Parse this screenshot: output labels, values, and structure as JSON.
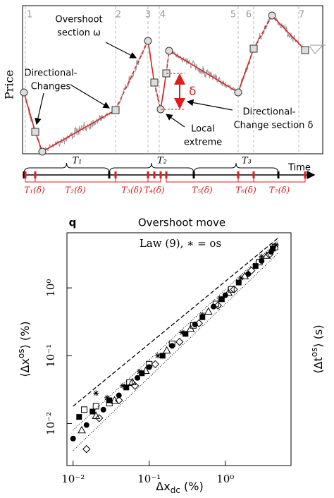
{
  "diagram": {
    "y_label": "Price",
    "x_label": "Time",
    "section_numbers": [
      "1",
      "2",
      "3",
      "4",
      "5",
      "6",
      "7"
    ],
    "overshoot_label": [
      "Overshoot",
      "section ω"
    ],
    "dc_label": [
      "Directional-",
      "Changes"
    ],
    "local_extreme_label": [
      "Local",
      "extreme"
    ],
    "dc_section_label": [
      "Directional-",
      "Change section δ"
    ],
    "delta_symbol": "δ",
    "total_periods": [
      "T₁",
      "T₂",
      "T₃"
    ],
    "dc_periods": [
      "T₁(δ)",
      "T₂(δ)",
      "T₃(δ)",
      "T₄(δ)",
      "T₅(δ)",
      "T₆(δ)",
      "T₇(δ)"
    ]
  },
  "chart_data": {
    "type": "scatter",
    "panel_label": "q",
    "title": "Overshoot move",
    "annotation": "Law (9), ∗ = os",
    "x_label": {
      "base": "Δx",
      "sub": "dc",
      "unit": " (%)"
    },
    "y_label": {
      "open": "⟨Δx",
      "sup": "os",
      "close": "⟩ (%)"
    },
    "y2_label": {
      "open": "⟨Δt",
      "sup": "os",
      "close": "⟩ (s)"
    },
    "log_x": true,
    "log_y": true,
    "xlim": [
      0.0083,
      7.3
    ],
    "ylim": [
      0.0024,
      6.5
    ],
    "xticks": [
      {
        "value": 0.01,
        "label": "10⁻²"
      },
      {
        "value": 0.1,
        "label": "10⁻¹"
      },
      {
        "value": 1,
        "label": "10⁰"
      }
    ],
    "yticks": [
      {
        "value": 0.01,
        "label": "10⁻²"
      },
      {
        "value": 0.1,
        "label": "10⁻¹"
      },
      {
        "value": 1,
        "label": "10⁰"
      }
    ],
    "series": [
      {
        "marker": "filled-circle",
        "color": "#000000",
        "x": [
          0.01,
          0.015,
          0.025,
          0.04,
          0.07,
          0.1,
          0.2,
          0.4,
          0.7,
          1,
          2,
          3,
          4
        ],
        "values": [
          0.006,
          0.0095,
          0.016,
          0.026,
          0.047,
          0.068,
          0.14,
          0.29,
          0.53,
          0.78,
          1.6,
          2.5,
          3.4
        ]
      },
      {
        "marker": "filled-square",
        "color": "#000000",
        "x": [
          0.012,
          0.018,
          0.03,
          0.05,
          0.08,
          0.15,
          0.3,
          0.5,
          0.9,
          1.5,
          2.5,
          4.2
        ],
        "values": [
          0.0125,
          0.015,
          0.022,
          0.034,
          0.055,
          0.1,
          0.21,
          0.37,
          0.68,
          1.2,
          2.1,
          3.8
        ]
      },
      {
        "marker": "open-triangle",
        "color": "#000000",
        "x": [
          0.013,
          0.02,
          0.035,
          0.06,
          0.09,
          0.17,
          0.35,
          0.6,
          1.1,
          1.8,
          3.5
        ],
        "values": [
          0.008,
          0.013,
          0.022,
          0.041,
          0.06,
          0.12,
          0.25,
          0.45,
          0.85,
          1.5,
          3
        ]
      },
      {
        "marker": "open-diamond",
        "color": "#000000",
        "x": [
          0.015,
          0.022,
          0.04,
          0.065,
          0.12,
          0.25,
          0.45,
          0.8,
          1.3,
          2.2,
          3.8
        ],
        "values": [
          0.0042,
          0.012,
          0.022,
          0.036,
          0.075,
          0.16,
          0.3,
          0.55,
          0.95,
          1.8,
          3.1
        ]
      },
      {
        "marker": "open-square",
        "color": "#000000",
        "x": [
          0.014,
          0.02,
          0.03,
          0.055,
          0.1,
          0.2,
          0.38,
          0.75,
          1.2,
          2.8,
          4.5
        ],
        "values": [
          0.016,
          0.018,
          0.02,
          0.04,
          0.075,
          0.15,
          0.28,
          0.58,
          0.95,
          2.4,
          4
        ]
      },
      {
        "marker": "star",
        "color": "#000000",
        "x": [
          0.02,
          0.028,
          0.045,
          0.075,
          0.13,
          0.27,
          0.5,
          0.85,
          1.6,
          3,
          4.6
        ],
        "values": [
          0.028,
          0.024,
          0.036,
          0.058,
          0.1,
          0.22,
          0.4,
          0.7,
          1.4,
          2.9,
          4.3
        ]
      }
    ],
    "lines": [
      {
        "style": "dashed",
        "x": [
          0.01,
          5
        ],
        "values": [
          0.018,
          5.5
        ]
      },
      {
        "style": "dotted",
        "x": [
          0.01,
          5
        ],
        "values": [
          0.004,
          3.3
        ]
      },
      {
        "style": "dotted",
        "x": [
          0.01,
          5
        ],
        "values": [
          0.008,
          5
        ]
      }
    ]
  }
}
